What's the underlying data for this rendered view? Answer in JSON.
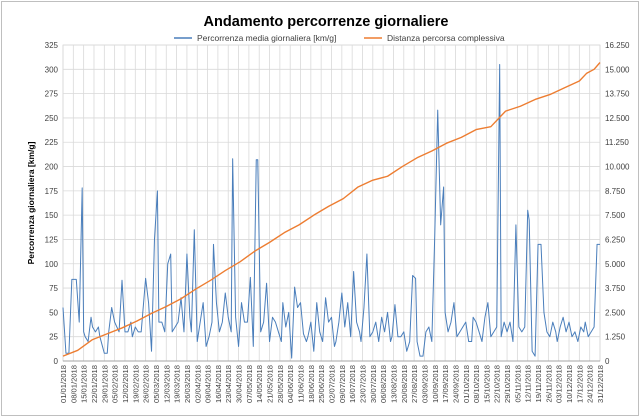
{
  "chart_data": {
    "type": "line",
    "title": "Andamento percorrenze giornaliere",
    "ylabel": "Percorrenza giornaliera [km/g]",
    "ylim": [
      0,
      325
    ],
    "y2lim": [
      0,
      16250
    ],
    "y_ticks": [
      "0",
      "25",
      "50",
      "75",
      "100",
      "125",
      "150",
      "175",
      "200",
      "225",
      "250",
      "275",
      "300",
      "325"
    ],
    "y2_ticks": [
      "0",
      "1.250",
      "2.500",
      "3.750",
      "5.000",
      "6.250",
      "7.500",
      "8.750",
      "10.000",
      "11.250",
      "12.500",
      "13.750",
      "15.000",
      "16.250"
    ],
    "x_tick_labels": [
      "01/01/2018",
      "08/01/2018",
      "15/01/2018",
      "22/01/2018",
      "29/01/2018",
      "05/02/2018",
      "12/02/2018",
      "19/02/2018",
      "26/02/2018",
      "05/03/2018",
      "12/03/2018",
      "19/03/2018",
      "26/03/2018",
      "02/04/2018",
      "09/04/2018",
      "16/04/2018",
      "23/04/2018",
      "30/04/2018",
      "07/05/2018",
      "14/05/2018",
      "21/05/2018",
      "28/05/2018",
      "04/06/2018",
      "11/06/2018",
      "18/06/2018",
      "25/06/2018",
      "02/07/2018",
      "09/07/2018",
      "16/07/2018",
      "23/07/2018",
      "30/07/2018",
      "06/08/2018",
      "13/08/2018",
      "20/08/2018",
      "27/08/2018",
      "03/09/2018",
      "10/09/2018",
      "17/09/2018",
      "24/09/2018",
      "01/10/2018",
      "08/10/2018",
      "15/10/2018",
      "22/10/2018",
      "29/10/2018",
      "05/11/2018",
      "12/11/2018",
      "19/11/2018",
      "26/11/2018",
      "03/12/2018",
      "10/12/2018",
      "17/12/2018",
      "24/12/2018",
      "31/12/2018"
    ],
    "grid": true,
    "legend_position": "top",
    "series": [
      {
        "name": "Percorrenza media giornaliera [km/g]",
        "axis": "left",
        "color": "#4a7ebb",
        "x": [
          0,
          2,
          4,
          6,
          9,
          11,
          13,
          14,
          15,
          17,
          19,
          20,
          22,
          24,
          25,
          28,
          30,
          31,
          33,
          35,
          38,
          40,
          42,
          44,
          46,
          47,
          49,
          51,
          53,
          56,
          58,
          60,
          62,
          64,
          65,
          67,
          69,
          71,
          73,
          74,
          76,
          78,
          80,
          82,
          84,
          86,
          87,
          89,
          91,
          93,
          95,
          97,
          99,
          101,
          102,
          104,
          106,
          108,
          110,
          112,
          114,
          115,
          117,
          119,
          121,
          123,
          125,
          127,
          129,
          131,
          132,
          134,
          136,
          138,
          140,
          142,
          144,
          146,
          148,
          149,
          151,
          153,
          155,
          157,
          159,
          161,
          163,
          165,
          166,
          168,
          170,
          172,
          174,
          176,
          178,
          180,
          182,
          184,
          185,
          187,
          189,
          191,
          193,
          195,
          197,
          199,
          201,
          202,
          204,
          206,
          208,
          210,
          212,
          214,
          216,
          218,
          220,
          222,
          223,
          225,
          227,
          229,
          231,
          233,
          235,
          237,
          239,
          240,
          242,
          244,
          246,
          248,
          250,
          252,
          254,
          256,
          258,
          259,
          261,
          263,
          265,
          267,
          269,
          271,
          273,
          275,
          277,
          278,
          280,
          282,
          284,
          286,
          288,
          290,
          292,
          294,
          296,
          297,
          299,
          301,
          303,
          305,
          307,
          309,
          311,
          313,
          315,
          316,
          318,
          320,
          322,
          324,
          326,
          328,
          330,
          332,
          334,
          335,
          337,
          339,
          341,
          343,
          345,
          347,
          349,
          351,
          353,
          354,
          356,
          358,
          360,
          362,
          364
        ],
        "y": [
          55,
          8,
          8,
          84,
          84,
          40,
          178,
          30,
          25,
          20,
          45,
          35,
          30,
          35,
          25,
          8,
          8,
          30,
          55,
          40,
          30,
          83,
          30,
          30,
          40,
          25,
          35,
          30,
          30,
          85,
          60,
          10,
          125,
          175,
          40,
          40,
          30,
          100,
          110,
          30,
          35,
          40,
          65,
          30,
          110,
          45,
          30,
          135,
          20,
          40,
          60,
          15,
          25,
          40,
          120,
          60,
          30,
          40,
          70,
          45,
          30,
          208,
          45,
          15,
          60,
          40,
          40,
          86,
          15,
          207,
          207,
          30,
          40,
          80,
          20,
          45,
          40,
          30,
          20,
          60,
          35,
          50,
          3,
          76,
          55,
          60,
          28,
          20,
          25,
          40,
          10,
          60,
          30,
          20,
          65,
          40,
          45,
          15,
          20,
          40,
          70,
          35,
          60,
          25,
          92,
          40,
          30,
          20,
          55,
          110,
          25,
          30,
          40,
          20,
          45,
          30,
          50,
          20,
          25,
          58,
          25,
          25,
          30,
          10,
          20,
          88,
          85,
          20,
          5,
          5,
          30,
          35,
          20,
          130,
          258,
          140,
          179,
          50,
          30,
          40,
          60,
          25,
          30,
          35,
          40,
          20,
          20,
          45,
          40,
          30,
          20,
          45,
          60,
          25,
          30,
          35,
          305,
          25,
          40,
          30,
          40,
          20,
          140,
          35,
          30,
          35,
          155,
          145,
          10,
          5,
          120,
          120,
          50,
          30,
          25,
          40,
          30,
          20,
          35,
          45,
          30,
          40,
          25,
          30,
          20,
          35,
          30,
          40,
          25,
          30,
          35,
          120,
          120
        ],
        "note_values_in": "km/g"
      },
      {
        "name": "Distanza  percorsa complessiva",
        "axis": "right",
        "color": "#ed7d31",
        "x": [
          0,
          10,
          20,
          30,
          40,
          50,
          60,
          70,
          80,
          90,
          100,
          110,
          120,
          130,
          140,
          150,
          160,
          170,
          180,
          190,
          200,
          210,
          220,
          230,
          240,
          250,
          260,
          270,
          280,
          290,
          300,
          310,
          320,
          330,
          340,
          350,
          355,
          360,
          364
        ],
        "y": [
          250,
          550,
          1100,
          1400,
          1700,
          2050,
          2450,
          2800,
          3200,
          3700,
          4150,
          4650,
          5100,
          5650,
          6100,
          6600,
          7000,
          7500,
          7950,
          8350,
          8950,
          9300,
          9500,
          10000,
          10450,
          10800,
          11200,
          11500,
          11900,
          12050,
          12850,
          13100,
          13450,
          13700,
          14050,
          14400,
          14800,
          15000,
          15350
        ]
      }
    ]
  }
}
